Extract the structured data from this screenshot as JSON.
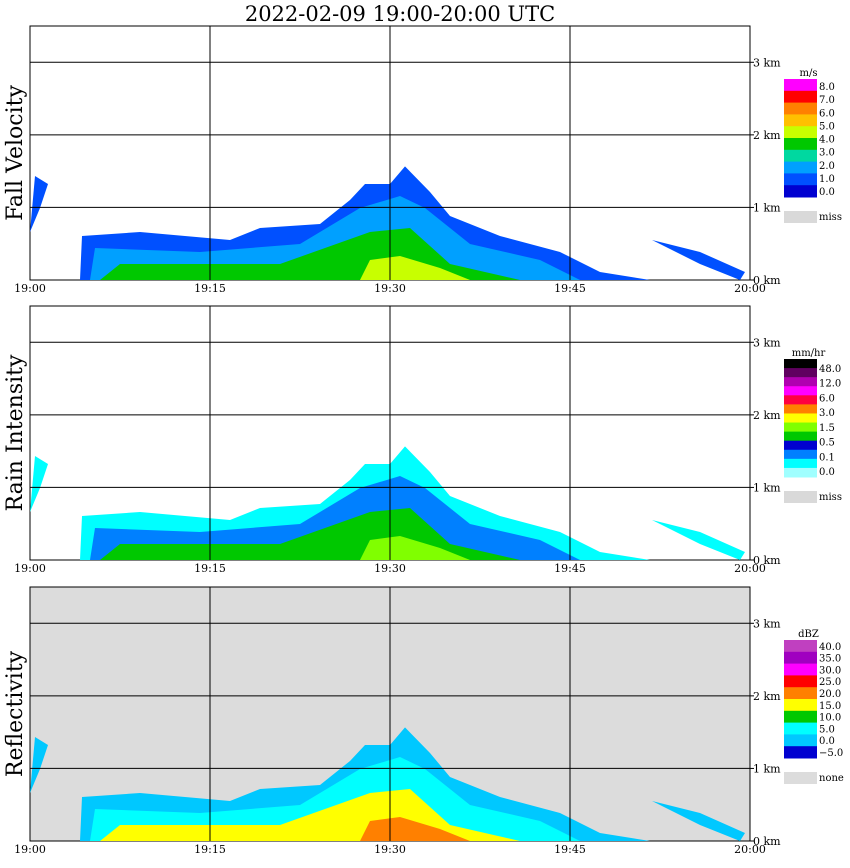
{
  "page": {
    "title": "2022-02-09   19:00-20:00 UTC"
  },
  "chart_data": [
    {
      "type": "heatmap",
      "ylabel": "Fall Velocity",
      "x_ticks": [
        "19:00",
        "19:15",
        "19:30",
        "19:45",
        "20:00"
      ],
      "y_ticks": [
        "0 km",
        "1 km",
        "2 km",
        "3 km"
      ],
      "xlim": [
        "19:00",
        "20:00"
      ],
      "ylim_km": [
        0,
        3.5
      ],
      "grid": true,
      "background": "#ffffff",
      "colorbar": {
        "unit": "m/s",
        "labels": [
          "8.0",
          "7.0",
          "6.0",
          "5.0",
          "4.0",
          "3.0",
          "2.0",
          "1.0",
          "0.0"
        ],
        "colors": [
          "#ff00ff",
          "#ff0000",
          "#ff8000",
          "#ffc000",
          "#c8ff00",
          "#00c800",
          "#00d8a0",
          "#00a0ff",
          "#0050ff",
          "#0000d0"
        ],
        "missing_label": "miss",
        "missing_color": "#d9d9d9"
      }
    },
    {
      "type": "heatmap",
      "ylabel": "Rain Intensity",
      "x_ticks": [
        "19:00",
        "19:15",
        "19:30",
        "19:45",
        "20:00"
      ],
      "y_ticks": [
        "0 km",
        "1 km",
        "2 km",
        "3 km"
      ],
      "xlim": [
        "19:00",
        "20:00"
      ],
      "ylim_km": [
        0,
        3.5
      ],
      "grid": true,
      "background": "#ffffff",
      "colorbar": {
        "unit": "mm/hr",
        "labels": [
          "48.0",
          "12.0",
          "6.0",
          "3.0",
          "1.5",
          "0.5",
          "0.1",
          "0.0"
        ],
        "colors": [
          "#000000",
          "#600060",
          "#b000b0",
          "#ff00ff",
          "#ff0040",
          "#ff8000",
          "#ffff00",
          "#80ff00",
          "#00c800",
          "#0000d0",
          "#0080ff",
          "#00ffff",
          "#a0ffff"
        ],
        "missing_label": "miss",
        "missing_color": "#d9d9d9"
      }
    },
    {
      "type": "heatmap",
      "ylabel": "Reflectivity",
      "x_ticks": [
        "19:00",
        "19:15",
        "19:30",
        "19:45",
        "20:00"
      ],
      "y_ticks": [
        "0 km",
        "1 km",
        "2 km",
        "3 km"
      ],
      "xlim": [
        "19:00",
        "20:00"
      ],
      "ylim_km": [
        0,
        3.5
      ],
      "grid": true,
      "background": "#dcdcdc",
      "colorbar": {
        "unit": "dBZ",
        "labels": [
          "40.0",
          "35.0",
          "30.0",
          "25.0",
          "20.0",
          "15.0",
          "10.0",
          "5.0",
          "0.0",
          "−5.0"
        ],
        "colors": [
          "#c040c0",
          "#a000c0",
          "#ff00ff",
          "#ff0000",
          "#ff8000",
          "#ffff00",
          "#00c800",
          "#00ffff",
          "#00c8ff",
          "#0000d0"
        ],
        "missing_label": "none",
        "missing_color": "#dcdcdc"
      }
    }
  ]
}
